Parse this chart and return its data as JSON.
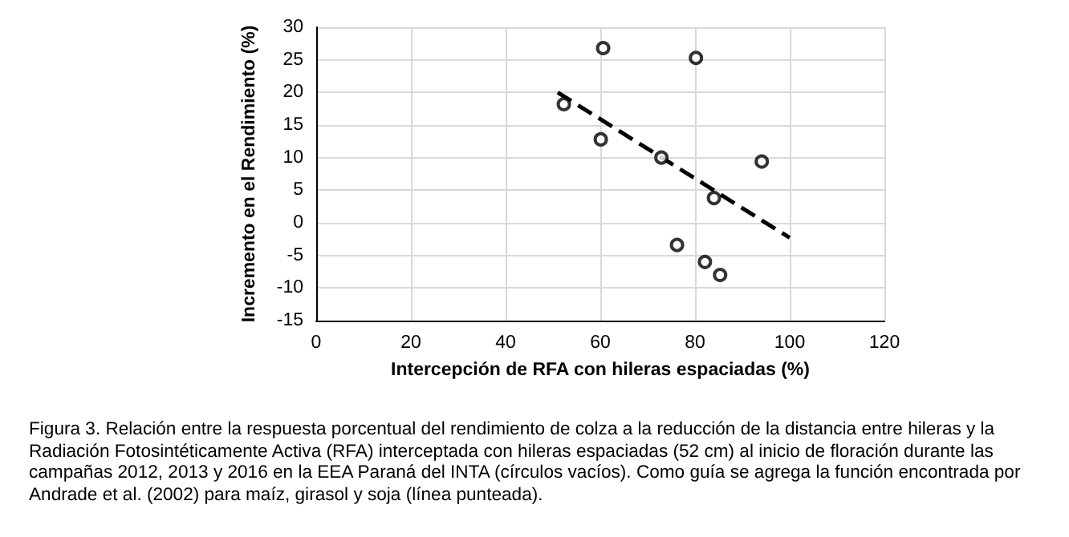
{
  "chart_data": {
    "type": "scatter",
    "xlabel": "Intercepción de RFA con hileras espaciadas (%)",
    "ylabel": "Incremento en el Rendimiento (%)",
    "annotations": [
      "Figura 3. Relación entre la respuesta porcentual del rendimiento de colza a la reducción de la distancia entre hileras y la Radiación Fotosintéticamente Activa (RFA) interceptada con hileras espaciadas (52 cm) al inicio de floración durante las campañas 2012, 2013 y 2016 en la EEA Paraná del INTA (círculos vacíos). Como guía se agrega la función encontrada por Andrade et al. (2002) para maíz, girasol y soja (línea punteada)."
    ],
    "series": [
      {
        "color": "#000000",
        "marker": "circle",
        "x": [
          52.3,
          60.6,
          80.2,
          60.1,
          72.9,
          94.1,
          84.0,
          76.2,
          82.1,
          85.3
        ],
        "values": [
          18.2,
          26.8,
          25.3,
          12.8,
          10.0,
          9.4,
          3.8,
          -3.4,
          -6.0,
          -8.0
        ]
      },
      {
        "type": "line",
        "color": "#000000",
        "marker": "none",
        "line_style": "dashed",
        "x": [
          51,
          100
        ],
        "values": [
          20,
          -2.3
        ]
      }
    ],
    "xlim": [
      0,
      120
    ],
    "xticks": [
      0,
      20,
      40,
      60,
      80,
      100,
      120
    ],
    "ylim": [
      -15,
      30
    ],
    "yticks": [
      -15,
      -10,
      -5,
      0,
      5,
      10,
      15,
      20,
      25,
      30
    ],
    "grid": true
  }
}
